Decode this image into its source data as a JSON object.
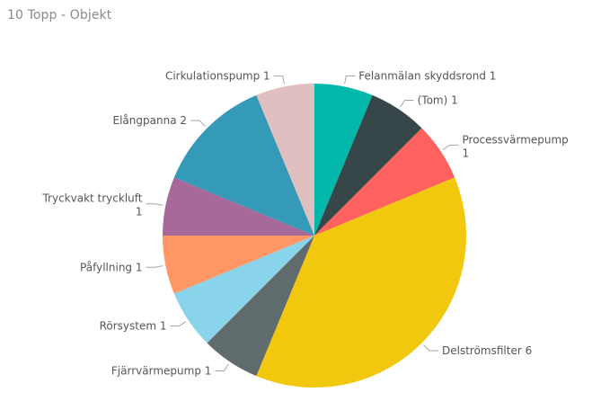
{
  "visual": {
    "title": "10 Topp - Objekt"
  },
  "chart_data": {
    "type": "pie",
    "title": "10 Topp - Objekt",
    "start": "top",
    "direction": "clockwise",
    "slices": [
      {
        "label": "Felanmälan skyddsrond",
        "value": 1,
        "color": "#01B8AA"
      },
      {
        "label": "(Tom)",
        "value": 1,
        "color": "#374649"
      },
      {
        "label": "Processvärmepump",
        "value": 1,
        "color": "#FD625E"
      },
      {
        "label": "Delströmsfilter",
        "value": 6,
        "color": "#F2C80F"
      },
      {
        "label": "Fjärrvärmepump",
        "value": 1,
        "color": "#5F6B6D"
      },
      {
        "label": "Rörsystem",
        "value": 1,
        "color": "#8AD4EB"
      },
      {
        "label": "Påfyllning",
        "value": 1,
        "color": "#FE9666"
      },
      {
        "label": "Tryckvakt tryckluft",
        "value": 1,
        "color": "#A66999"
      },
      {
        "label": "Elångpanna",
        "value": 2,
        "color": "#3599B8"
      },
      {
        "label": "Cirkulationspump",
        "value": 1,
        "color": "#DFBFBF"
      }
    ]
  }
}
